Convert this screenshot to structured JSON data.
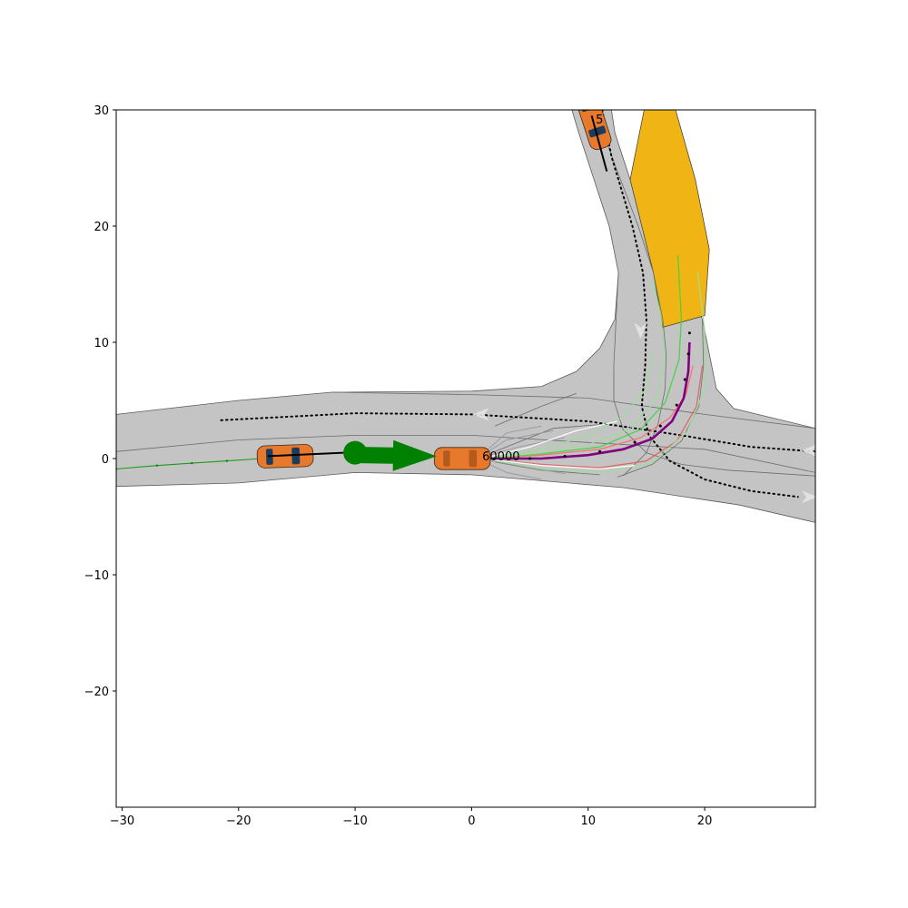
{
  "chart_data": {
    "type": "scatter",
    "title": "",
    "xlabel": "",
    "ylabel": "",
    "xlim": [
      -30.5,
      29.5
    ],
    "ylim": [
      -30,
      30
    ],
    "grid": false,
    "x_ticks": [
      -30,
      -20,
      -10,
      0,
      10,
      20
    ],
    "y_ticks": [
      -20,
      -10,
      0,
      10,
      20,
      30
    ],
    "x_tick_labels": [
      "−30",
      "−20",
      "−10",
      "0",
      "10",
      "20"
    ],
    "y_tick_labels": [
      "−20",
      "−10",
      "0",
      "10",
      "20",
      "30"
    ],
    "road": {
      "color": "#c4c4c4",
      "outline": [
        [
          -30.5,
          3.8
        ],
        [
          -20,
          5.0
        ],
        [
          -12,
          5.7
        ],
        [
          0,
          5.8
        ],
        [
          6,
          6.2
        ],
        [
          9,
          7.5
        ],
        [
          11,
          9.5
        ],
        [
          12.3,
          12.0
        ],
        [
          12.6,
          16.0
        ],
        [
          11.8,
          20.0
        ],
        [
          10.5,
          24.0
        ],
        [
          9.2,
          28.0
        ],
        [
          8.6,
          30.0
        ],
        [
          12.0,
          30.0
        ],
        [
          12.3,
          28.0
        ],
        [
          13.6,
          24.0
        ],
        [
          15.6,
          20.0
        ],
        [
          17.8,
          16.0
        ],
        [
          19.8,
          12.0
        ],
        [
          21.0,
          6.0
        ],
        [
          22.5,
          4.3
        ],
        [
          29.5,
          2.6
        ],
        [
          29.5,
          -5.5
        ],
        [
          23.0,
          -4.0
        ],
        [
          13.0,
          -2.5
        ],
        [
          0,
          -1.4
        ],
        [
          -10,
          -1.2
        ],
        [
          -20,
          -2.1
        ],
        [
          -30.5,
          -2.4
        ]
      ],
      "lane_lines": [
        [
          [
            -30.5,
            0.6
          ],
          [
            -20,
            1.6
          ],
          [
            -10,
            2.0
          ],
          [
            0,
            2.0
          ],
          [
            8,
            1.5
          ],
          [
            20,
            0.8
          ],
          [
            29.5,
            -1.2
          ]
        ],
        [
          [
            -12,
            5.7
          ],
          [
            0,
            5.5
          ],
          [
            10,
            5.2
          ],
          [
            20,
            3.8
          ],
          [
            29.5,
            2.6
          ]
        ],
        [
          [
            10.6,
            30.0
          ],
          [
            12.4,
            25.0
          ],
          [
            14.3,
            20.0
          ],
          [
            15.6,
            16.0
          ],
          [
            16.4,
            12.0
          ],
          [
            16.7,
            9.0
          ],
          [
            16.6,
            6.0
          ],
          [
            16.0,
            3.0
          ],
          [
            15.0,
            0.5
          ],
          [
            13.0,
            -1.5
          ]
        ],
        [
          [
            12.6,
            16.0
          ],
          [
            12.4,
            12.0
          ],
          [
            12.2,
            8.0
          ],
          [
            12.2,
            5.0
          ],
          [
            13.0,
            2.5
          ],
          [
            15.0,
            0.5
          ],
          [
            18.0,
            -0.5
          ],
          [
            22.0,
            -1.0
          ],
          [
            29.5,
            -1.5
          ]
        ],
        [
          [
            19.8,
            12.0
          ],
          [
            19.9,
            8.0
          ],
          [
            19.5,
            4.5
          ],
          [
            18.0,
            1.5
          ],
          [
            15.5,
            -0.5
          ],
          [
            12.5,
            -1.6
          ]
        ],
        [
          [
            2.0,
            2.8
          ],
          [
            6.0,
            4.5
          ],
          [
            9.0,
            5.6
          ]
        ],
        [
          [
            2.0,
            0.6
          ],
          [
            7.0,
            2.6
          ],
          [
            12.0,
            3.0
          ]
        ],
        [
          [
            2.0,
            -0.3
          ],
          [
            6.0,
            -1.0
          ],
          [
            11.0,
            -1.4
          ]
        ]
      ]
    },
    "highlight_lane": {
      "color": "#f0b514",
      "polygon": [
        [
          14.8,
          30.0
        ],
        [
          17.5,
          30.0
        ],
        [
          19.2,
          24.0
        ],
        [
          20.4,
          18.0
        ],
        [
          20.0,
          12.3
        ],
        [
          16.4,
          11.3
        ],
        [
          15.6,
          16.0
        ],
        [
          13.6,
          24.0
        ]
      ]
    },
    "centerline_paths": [
      [
        [
          -21.5,
          3.3
        ],
        [
          -10,
          3.9
        ],
        [
          0,
          3.8
        ],
        [
          10,
          3.2
        ],
        [
          18,
          2.0
        ],
        [
          24,
          1.0
        ],
        [
          29.5,
          0.6
        ]
      ],
      [
        [
          11.2,
          30.0
        ],
        [
          12.0,
          26.0
        ],
        [
          13.8,
          20.0
        ],
        [
          14.7,
          16.0
        ],
        [
          15.0,
          12.0
        ],
        [
          14.9,
          8.0
        ],
        [
          14.6,
          4.5
        ],
        [
          15.2,
          2.0
        ],
        [
          17.0,
          -0.2
        ],
        [
          20.0,
          -1.8
        ],
        [
          24.0,
          -2.8
        ],
        [
          28.0,
          -3.3
        ]
      ]
    ],
    "lane_arrows": [
      {
        "x": 0.8,
        "y": 3.8,
        "direction": "left"
      },
      {
        "x": 14.5,
        "y": 11.0,
        "direction": "down"
      },
      {
        "x": 29.0,
        "y": 0.7,
        "direction": "left"
      },
      {
        "x": 29.0,
        "y": -3.3,
        "direction": "right"
      }
    ],
    "agents": [
      {
        "id": "60000",
        "x": -0.8,
        "y": 0.0,
        "heading_deg": 0,
        "role": "ego"
      },
      {
        "id": "",
        "x": -16.0,
        "y": 0.2,
        "heading_deg": 2,
        "role": "neighbor"
      },
      {
        "id": "5",
        "x": 10.5,
        "y": 29.0,
        "heading_deg": -72,
        "role": "neighbor"
      }
    ],
    "agent_velocity_lines": [
      [
        [
          -17.5,
          0.2
        ],
        [
          -11.0,
          0.5
        ]
      ],
      [
        [
          10.3,
          29.5
        ],
        [
          11.6,
          24.7
        ]
      ]
    ],
    "history_track": [
      [
        -30.5,
        -0.9
      ],
      [
        -27,
        -0.6
      ],
      [
        -24,
        -0.4
      ],
      [
        -21,
        -0.2
      ],
      [
        -18,
        0.0
      ],
      [
        -16,
        0.1
      ]
    ],
    "goal_marker": {
      "x": -10.0,
      "y": 0.5
    },
    "goal_arrow": {
      "from": [
        -9.5,
        0.3
      ],
      "to": [
        -3.0,
        0.2
      ]
    },
    "predicted_trajectories": [
      {
        "name": "candidate",
        "color": "#ff6d6d",
        "points": [
          [
            1,
            0
          ],
          [
            6,
            0.3
          ],
          [
            11,
            0.8
          ],
          [
            14.5,
            1.8
          ],
          [
            17,
            3.5
          ],
          [
            18.4,
            5.5
          ],
          [
            19.0,
            8.0
          ]
        ]
      },
      {
        "name": "candidate",
        "color": "#e06060",
        "points": [
          [
            1,
            0
          ],
          [
            6,
            -0.5
          ],
          [
            11,
            -0.8
          ],
          [
            15,
            -0.2
          ],
          [
            17.6,
            1.5
          ],
          [
            19.3,
            4.5
          ],
          [
            19.8,
            8.0
          ]
        ]
      },
      {
        "name": "candidate",
        "color": "#3fd43f",
        "points": [
          [
            1,
            0
          ],
          [
            6,
            0.4
          ],
          [
            11,
            1.0
          ],
          [
            14.5,
            2.5
          ],
          [
            16.6,
            4.8
          ],
          [
            17.8,
            8.5
          ],
          [
            18.0,
            12.0
          ],
          [
            17.7,
            17.5
          ]
        ]
      },
      {
        "name": "candidate",
        "color": "#98e098",
        "points": [
          [
            1,
            0
          ],
          [
            6,
            0.5
          ],
          [
            10,
            1.2
          ],
          [
            13.5,
            2.5
          ],
          [
            15.8,
            5.0
          ],
          [
            16.6,
            9.0
          ],
          [
            16.2,
            12.5
          ],
          [
            15.5,
            15.5
          ]
        ]
      },
      {
        "name": "candidate",
        "color": "#98e098",
        "points": [
          [
            1,
            0
          ],
          [
            6,
            -0.9
          ],
          [
            11,
            -1.2
          ],
          [
            15.5,
            -0.4
          ],
          [
            18.5,
            2.3
          ],
          [
            20.0,
            6.0
          ],
          [
            20.0,
            11.0
          ],
          [
            19.4,
            16.0
          ]
        ]
      },
      {
        "name": "candidate",
        "color": "#98e098",
        "points": [
          [
            1,
            0
          ],
          [
            6,
            0.8
          ],
          [
            10,
            2.0
          ],
          [
            13,
            3.6
          ],
          [
            15.0,
            6.0
          ],
          [
            15.6,
            9.0
          ]
        ]
      },
      {
        "name": "candidate",
        "color": "#ffffff",
        "points": [
          [
            1,
            0
          ],
          [
            5,
            1.0
          ],
          [
            9,
            2.4
          ],
          [
            12.5,
            3.2
          ]
        ]
      },
      {
        "name": "candidate",
        "color": "#ffffff",
        "points": [
          [
            1,
            0
          ],
          [
            6,
            -0.6
          ],
          [
            11,
            -0.9
          ],
          [
            14,
            -0.6
          ]
        ]
      }
    ],
    "ego_plan": {
      "color": "#800080",
      "points": [
        [
          1.0,
          0.0
        ],
        [
          6,
          0.0
        ],
        [
          10,
          0.3
        ],
        [
          13,
          0.8
        ],
        [
          15.5,
          1.7
        ],
        [
          17.2,
          3.2
        ],
        [
          18.2,
          5.2
        ],
        [
          18.6,
          7.5
        ],
        [
          18.7,
          10.0
        ]
      ]
    },
    "ego_plan_dots": {
      "color": "#000000",
      "points": [
        [
          18.7,
          10.8
        ],
        [
          18.6,
          9.0
        ],
        [
          18.3,
          6.8
        ],
        [
          17.6,
          4.6
        ],
        [
          16.2,
          2.8
        ],
        [
          14.0,
          1.4
        ],
        [
          11.0,
          0.6
        ],
        [
          8.0,
          0.2
        ],
        [
          5.0,
          0.0
        ],
        [
          2.0,
          0.0
        ]
      ]
    },
    "gray_fan": [
      [
        [
          0.5,
          0
        ],
        [
          3,
          2.2
        ],
        [
          6,
          2.8
        ]
      ],
      [
        [
          0.5,
          0
        ],
        [
          3,
          1.6
        ],
        [
          7,
          2.4
        ]
      ],
      [
        [
          0.5,
          0
        ],
        [
          4,
          1.0
        ],
        [
          8,
          1.8
        ]
      ],
      [
        [
          0.5,
          0
        ],
        [
          4,
          -0.6
        ],
        [
          8,
          -1.3
        ]
      ],
      [
        [
          0.5,
          0
        ],
        [
          3,
          -1.2
        ],
        [
          6,
          -1.8
        ]
      ]
    ],
    "colors": {
      "ego_body": "#e8792c",
      "neighbor_body": "#e8792c",
      "window": "#1d3c5c",
      "goal": "#008000",
      "plan": "#800080",
      "highlight": "#f0b514",
      "road": "#c4c4c4"
    }
  }
}
